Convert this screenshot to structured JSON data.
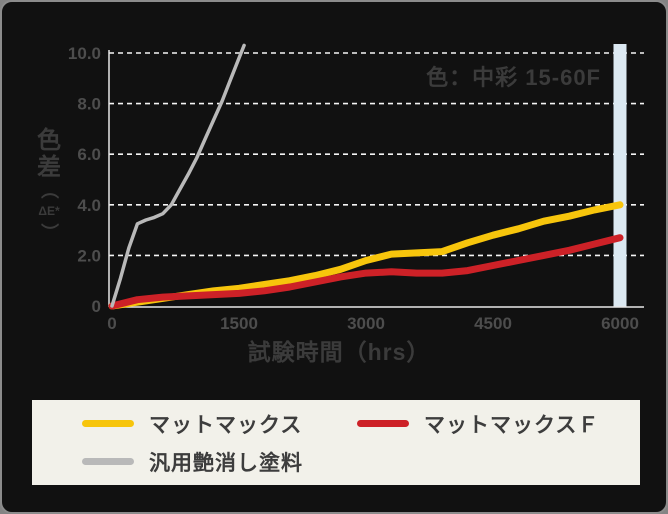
{
  "colors": {
    "card_background": "#111111",
    "card_border": "#8c8c8c",
    "legend_background": "#f2f1ea",
    "dark_text": "#3b3b3b",
    "tick_text": "#4d4d4d",
    "axis_line": "#e8e8e8",
    "gridline": "#f5f5f5",
    "highlight_bar": "#dce9f2",
    "yellow_series": "#f7c50c",
    "red_series": "#cd2127",
    "gray_series": "#b9b9b9"
  },
  "chart_data": {
    "type": "line",
    "annotation": "色：中彩 15-60F",
    "xlabel": "試験時間（hrs）",
    "ylabel": "色差（ΔE*）",
    "ylabel_stack": {
      "chars": [
        "色",
        "差"
      ],
      "paren_open": "（",
      "sub_label": "ΔE*",
      "paren_close": "）"
    },
    "xlim": [
      0,
      6300
    ],
    "ylim": [
      0,
      10.4
    ],
    "x_ticks": [
      0,
      1500,
      3000,
      4500,
      6000
    ],
    "x_tick_labels": [
      "0",
      "1500",
      "3000",
      "4500",
      "6000"
    ],
    "y_ticks": [
      0,
      2,
      4,
      6,
      8,
      10
    ],
    "y_tick_labels": [
      "0",
      "2.0",
      "4.0",
      "6.0",
      "8.0",
      "10.0"
    ],
    "grid": "horizontal dashed white",
    "legend_position": "bottom",
    "highlight_bar": {
      "x": 6000,
      "color": "#dce9f2",
      "note": "vertical band at 6000 hrs"
    },
    "series": [
      {
        "id": "mattmax",
        "name": "マットマックス",
        "color": "#f7c50c",
        "width": 7,
        "x": [
          0,
          300,
          600,
          900,
          1200,
          1500,
          1800,
          2100,
          2400,
          2700,
          3000,
          3300,
          3600,
          3900,
          4200,
          4500,
          4800,
          5100,
          5400,
          5700,
          6000
        ],
        "y": [
          0,
          0.15,
          0.3,
          0.45,
          0.6,
          0.7,
          0.85,
          1.0,
          1.2,
          1.45,
          1.8,
          2.05,
          2.1,
          2.15,
          2.5,
          2.8,
          3.05,
          3.35,
          3.55,
          3.8,
          4.0
        ]
      },
      {
        "id": "mattmax-f",
        "name": "マットマックスＦ",
        "color": "#cd2127",
        "width": 7,
        "x": [
          0,
          300,
          600,
          900,
          1200,
          1500,
          1800,
          2100,
          2400,
          2700,
          3000,
          3300,
          3600,
          3900,
          4200,
          4500,
          4800,
          5100,
          5400,
          5700,
          6000
        ],
        "y": [
          0,
          0.25,
          0.35,
          0.4,
          0.45,
          0.5,
          0.6,
          0.75,
          0.95,
          1.15,
          1.3,
          1.35,
          1.3,
          1.3,
          1.4,
          1.6,
          1.8,
          2.0,
          2.2,
          2.45,
          2.7
        ]
      },
      {
        "id": "generic-matte-paint",
        "name": "汎用艶消し塗料",
        "color": "#b9b9b9",
        "width": 3.5,
        "x": [
          0,
          100,
          200,
          300,
          400,
          500,
          600,
          700,
          800,
          900,
          1000,
          1100,
          1200,
          1300,
          1400,
          1500,
          1560
        ],
        "y": [
          0,
          1.1,
          2.3,
          3.25,
          3.4,
          3.5,
          3.65,
          4.0,
          4.6,
          5.2,
          5.85,
          6.6,
          7.35,
          8.1,
          8.95,
          9.8,
          10.3
        ]
      }
    ]
  },
  "legend": {
    "items": [
      {
        "label": "マットマックス",
        "color": "#f7c50c"
      },
      {
        "label": "マットマックスＦ",
        "color": "#cd2127"
      },
      {
        "label": "汎用艶消し塗料",
        "color": "#b9b9b9"
      }
    ]
  }
}
